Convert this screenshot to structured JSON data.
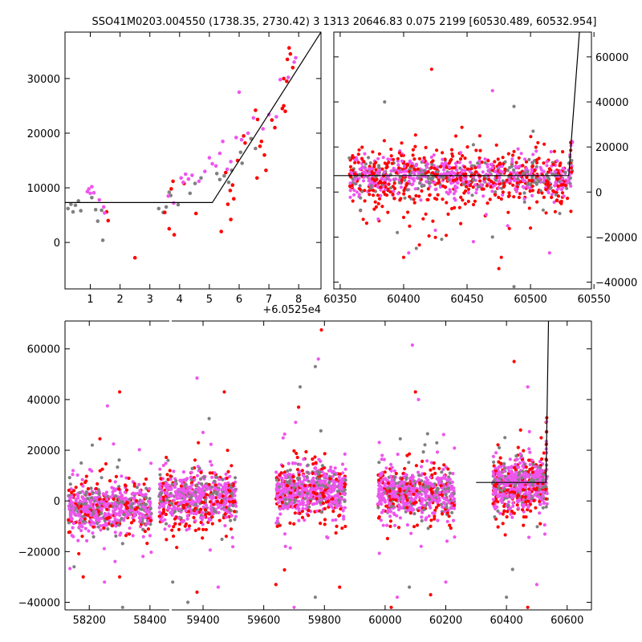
{
  "figure": {
    "title": "SSO41M0203.004550 (1738.35, 2730.42) 3 1313 20646.83 0.075 2199 [60530.489, 60532.954]"
  },
  "colors": {
    "gray": "#808080",
    "red": "#ff0000",
    "magenta": "#ee55ee",
    "model_line": "#000000"
  },
  "chart_data": [
    {
      "id": "zoom",
      "type": "scatter",
      "title": "",
      "xlabel": "",
      "ylabel": "",
      "x_offset_label": "+6.0525e4",
      "x_offset": 60525,
      "xlim": [
        0.15,
        8.75
      ],
      "ylim": [
        -8500,
        38500
      ],
      "xticks": [
        1,
        2,
        3,
        4,
        5,
        6,
        7,
        8
      ],
      "xtick_labels": [
        "1",
        "2",
        "3",
        "4",
        "5",
        "6",
        "7",
        "8"
      ],
      "yticks": [
        0,
        10000,
        20000,
        30000
      ],
      "ytick_labels": [
        "0",
        "10000",
        "20000",
        "30000"
      ],
      "yaxis_side": "left",
      "model_line": {
        "x": [
          0.15,
          5.1,
          8.75
        ],
        "y": [
          7300,
          7300,
          38500
        ]
      },
      "series": [
        {
          "color_key": "gray",
          "points": [
            [
              0.25,
              6200
            ],
            [
              0.35,
              7000
            ],
            [
              0.42,
              5600
            ],
            [
              0.5,
              6800
            ],
            [
              0.6,
              7600
            ],
            [
              0.68,
              5800
            ],
            [
              1.05,
              8200
            ],
            [
              1.18,
              6000
            ],
            [
              1.25,
              3900
            ],
            [
              1.38,
              5900
            ],
            [
              1.42,
              400
            ],
            [
              3.3,
              6200
            ],
            [
              3.45,
              5500
            ],
            [
              3.55,
              6500
            ],
            [
              3.65,
              9200
            ],
            [
              3.7,
              8600
            ],
            [
              3.95,
              6900
            ],
            [
              4.35,
              9000
            ],
            [
              4.52,
              10800
            ],
            [
              4.72,
              11800
            ],
            [
              5.25,
              12600
            ],
            [
              5.35,
              11500
            ],
            [
              5.5,
              12200
            ],
            [
              5.65,
              11000
            ],
            [
              5.75,
              13200
            ],
            [
              6.05,
              16500
            ],
            [
              6.1,
              14500
            ],
            [
              6.4,
              19000
            ],
            [
              6.55,
              17200
            ]
          ]
        },
        {
          "color_key": "red",
          "points": [
            [
              1.55,
              5600
            ],
            [
              1.6,
              4000
            ],
            [
              2.5,
              -2800
            ],
            [
              3.5,
              5500
            ],
            [
              3.65,
              2500
            ],
            [
              3.72,
              9800
            ],
            [
              3.78,
              11200
            ],
            [
              3.82,
              1400
            ],
            [
              4.15,
              10800
            ],
            [
              4.55,
              5300
            ],
            [
              5.4,
              2000
            ],
            [
              5.55,
              12800
            ],
            [
              5.62,
              7000
            ],
            [
              5.7,
              9500
            ],
            [
              5.72,
              4200
            ],
            [
              5.78,
              10500
            ],
            [
              5.82,
              8000
            ],
            [
              5.95,
              15000
            ],
            [
              6.15,
              19500
            ],
            [
              6.2,
              18200
            ],
            [
              6.55,
              24200
            ],
            [
              6.62,
              22500
            ],
            [
              6.6,
              11800
            ],
            [
              6.7,
              17600
            ],
            [
              6.75,
              18500
            ],
            [
              6.85,
              16000
            ],
            [
              6.9,
              13200
            ],
            [
              7.1,
              22400
            ],
            [
              7.2,
              21000
            ],
            [
              7.45,
              24500
            ],
            [
              7.5,
              25000
            ],
            [
              7.5,
              30000
            ],
            [
              7.55,
              24000
            ],
            [
              7.6,
              29500
            ],
            [
              7.62,
              33500
            ],
            [
              7.68,
              35600
            ],
            [
              7.72,
              34500
            ],
            [
              7.8,
              32000
            ]
          ]
        },
        {
          "color_key": "magenta",
          "points": [
            [
              0.9,
              9300
            ],
            [
              0.95,
              9800
            ],
            [
              1.0,
              9000
            ],
            [
              1.05,
              10200
            ],
            [
              1.12,
              9100
            ],
            [
              1.3,
              7800
            ],
            [
              1.45,
              6500
            ],
            [
              1.48,
              5400
            ],
            [
              3.62,
              8500
            ],
            [
              3.8,
              7200
            ],
            [
              4.05,
              11800
            ],
            [
              4.12,
              11000
            ],
            [
              4.2,
              12500
            ],
            [
              4.3,
              11600
            ],
            [
              4.42,
              12300
            ],
            [
              4.65,
              11200
            ],
            [
              4.85,
              13000
            ],
            [
              5.0,
              15500
            ],
            [
              5.1,
              14400
            ],
            [
              5.22,
              14000
            ],
            [
              5.35,
              16300
            ],
            [
              5.45,
              18500
            ],
            [
              5.6,
              13400
            ],
            [
              5.72,
              14800
            ],
            [
              5.9,
              19200
            ],
            [
              6.0,
              27500
            ],
            [
              6.08,
              18800
            ],
            [
              6.3,
              20000
            ],
            [
              6.48,
              22800
            ],
            [
              6.8,
              20800
            ],
            [
              7.0,
              23400
            ],
            [
              7.25,
              23000
            ],
            [
              7.38,
              29800
            ],
            [
              7.65,
              30200
            ],
            [
              7.85,
              33000
            ],
            [
              7.9,
              33800
            ]
          ]
        }
      ]
    },
    {
      "id": "recent",
      "type": "scatter",
      "title": "",
      "xlabel": "",
      "ylabel": "",
      "xlim": [
        60345,
        60548
      ],
      "ylim": [
        -43000,
        71000
      ],
      "xticks": [
        60350,
        60400,
        60450,
        60500,
        60550
      ],
      "xtick_labels": [
        "60350",
        "60400",
        "60450",
        "60500",
        "60550"
      ],
      "yticks": [
        -40000,
        -20000,
        0,
        20000,
        40000,
        60000
      ],
      "ytick_labels": [
        "−40000",
        "−20000",
        "0",
        "20000",
        "40000",
        "60000"
      ],
      "yaxis_side": "right",
      "model_line": {
        "x": [
          60345,
          60530.1,
          60538.5
        ],
        "y": [
          7300,
          7300,
          71000
        ]
      },
      "band": {
        "x_start": 60357,
        "x_end": 60532,
        "center": 7000,
        "spread": 4500
      },
      "outliers": [
        [
          60385,
          40000
        ],
        [
          60422,
          54500
        ],
        [
          60470,
          45000
        ],
        [
          60502,
          27000
        ],
        [
          60390,
          19000
        ],
        [
          60445,
          17500
        ],
        [
          60455,
          21000
        ],
        [
          60505,
          13000
        ],
        [
          60513,
          13500
        ],
        [
          60487,
          38000
        ],
        [
          60487,
          18000
        ],
        [
          60495,
          5000
        ],
        [
          60366,
          -8000
        ],
        [
          60400,
          -29000
        ],
        [
          60404,
          -27000
        ],
        [
          60410,
          -25000
        ],
        [
          60420,
          -19500
        ],
        [
          60425,
          -17000
        ],
        [
          60430,
          -21000
        ],
        [
          60445,
          -14000
        ],
        [
          60455,
          -22000
        ],
        [
          60470,
          -20000
        ],
        [
          60477,
          -29000
        ],
        [
          60482,
          -15000
        ],
        [
          60487,
          -42000
        ],
        [
          60500,
          -16000
        ],
        [
          60515,
          -27000
        ],
        [
          60523,
          -9500
        ],
        [
          60360,
          -4000
        ],
        [
          60380,
          -12000
        ],
        [
          60395,
          -18000
        ],
        [
          60440,
          -7000
        ],
        [
          60465,
          -10000
        ],
        [
          60510,
          -8000
        ],
        [
          60475,
          -34000
        ]
      ]
    },
    {
      "id": "full",
      "type": "scatter",
      "title": "",
      "xlabel": "",
      "ylabel": "",
      "xlim": [
        58120,
        60680
      ],
      "xlim_break": [
        58420,
        59250
      ],
      "ylim": [
        -43000,
        71000
      ],
      "xticks": [
        58200,
        58400,
        59400,
        59600,
        59800,
        60000,
        60200,
        60400,
        60600
      ],
      "xtick_labels": [
        "58200",
        "58400",
        "59400",
        "59600",
        "59800",
        "60000",
        "60200",
        "60400",
        "60600"
      ],
      "yticks": [
        -40000,
        -20000,
        0,
        20000,
        40000,
        60000
      ],
      "ytick_labels": [
        "−40000",
        "−20000",
        "0",
        "20000",
        "40000",
        "60000"
      ],
      "yaxis_side": "left",
      "model_line": {
        "x": [
          60300,
          60530.1,
          60538.5
        ],
        "y": [
          7300,
          7300,
          71000
        ]
      },
      "seasons": [
        {
          "x_start": 58130,
          "x_end": 58405,
          "center": -3000
        },
        {
          "x_start": 59255,
          "x_end": 59510,
          "center": 1500
        },
        {
          "x_start": 59640,
          "x_end": 59870,
          "center": 4000
        },
        {
          "x_start": 59975,
          "x_end": 60230,
          "center": 3000
        },
        {
          "x_start": 60355,
          "x_end": 60535,
          "center": 6500
        }
      ],
      "outliers": [
        [
          58300,
          43000
        ],
        [
          58260,
          37500
        ],
        [
          58210,
          22000
        ],
        [
          58235,
          24500
        ],
        [
          58280,
          22500
        ],
        [
          58310,
          -42000
        ],
        [
          58300,
          -30000
        ],
        [
          58250,
          -32000
        ],
        [
          58150,
          -26000
        ],
        [
          58180,
          -30000
        ],
        [
          59380,
          48500
        ],
        [
          59420,
          32500
        ],
        [
          59470,
          43000
        ],
        [
          59400,
          27000
        ],
        [
          59350,
          -40000
        ],
        [
          59380,
          -36000
        ],
        [
          59450,
          -34000
        ],
        [
          59300,
          -32000
        ],
        [
          59790,
          67500
        ],
        [
          59780,
          56000
        ],
        [
          59770,
          53000
        ],
        [
          59715,
          37000
        ],
        [
          59705,
          31000
        ],
        [
          59720,
          45000
        ],
        [
          59640,
          -33000
        ],
        [
          59700,
          -42000
        ],
        [
          59770,
          -38000
        ],
        [
          59850,
          -34000
        ],
        [
          60090,
          61500
        ],
        [
          60050,
          24500
        ],
        [
          60100,
          43000
        ],
        [
          60110,
          40000
        ],
        [
          60140,
          26500
        ],
        [
          60020,
          -42000
        ],
        [
          60040,
          -38000
        ],
        [
          60080,
          -34000
        ],
        [
          60150,
          -37000
        ],
        [
          60200,
          -32000
        ],
        [
          60395,
          25000
        ],
        [
          60425,
          55000
        ],
        [
          60470,
          45000
        ],
        [
          60400,
          -38000
        ],
        [
          60470,
          -42000
        ],
        [
          60500,
          -33000
        ],
        [
          60420,
          -27000
        ]
      ]
    }
  ]
}
